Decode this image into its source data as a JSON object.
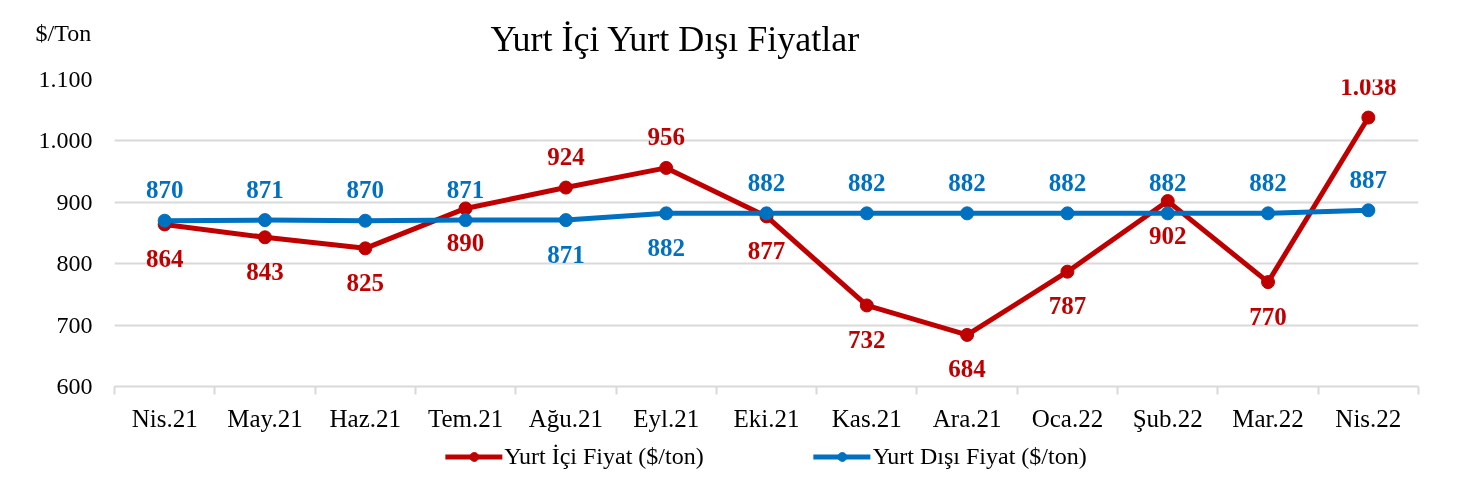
{
  "chart_data": {
    "type": "line",
    "title": "Yurt İçi Yurt Dışı Fiyatlar",
    "ylabel": "$/Ton",
    "categories": [
      "Nis.21",
      "May.21",
      "Haz.21",
      "Tem.21",
      "Ağu.21",
      "Eyl.21",
      "Eki.21",
      "Kas.21",
      "Ara.21",
      "Oca.22",
      "Şub.22",
      "Mar.22",
      "Nis.22"
    ],
    "series": [
      {
        "name": "Yurt İçi Fiyat ($/ton)",
        "color": "#c00000",
        "values": [
          864,
          843,
          825,
          890,
          924,
          956,
          877,
          732,
          684,
          787,
          902,
          770,
          1038
        ],
        "value_labels": [
          "864",
          "843",
          "825",
          "890",
          "924",
          "956",
          "877",
          "732",
          "684",
          "787",
          "902",
          "770",
          "1.038"
        ]
      },
      {
        "name": "Yurt Dışı Fiyat ($/ton)",
        "color": "#0070c0",
        "values": [
          870,
          871,
          870,
          871,
          871,
          882,
          882,
          882,
          882,
          882,
          882,
          882,
          887
        ],
        "value_labels": [
          "870",
          "871",
          "870",
          "871",
          "871",
          "882",
          "882",
          "882",
          "882",
          "882",
          "882",
          "882",
          "887"
        ]
      }
    ],
    "ylim": [
      600,
      1100
    ],
    "yticks": [
      600,
      700,
      800,
      900,
      {
        "value": 1000,
        "label": "1.000"
      },
      {
        "value": 1100,
        "label": "1.100"
      }
    ],
    "grid": "y",
    "legend": "bottom",
    "marker": "circle",
    "line_style": "solid"
  }
}
